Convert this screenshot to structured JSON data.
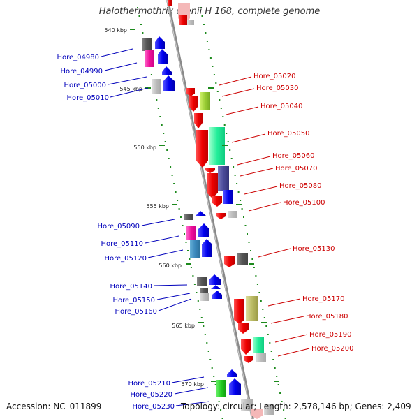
{
  "title": "Halothermothrix orenii H 168, complete genome",
  "accession": "Accession: NC_011899",
  "summary": "Topology: circular; Length: 2,578,146 bp; Genes: 2,409",
  "scale_labels": [
    "540 kbp",
    "545 kbp",
    "550 kbp",
    "555 kbp",
    "560 kbp",
    "565 kbp",
    "570 kbp"
  ],
  "left_genes": [
    "Hore_04980",
    "Hore_04990",
    "Hore_05000",
    "Hore_05010",
    "Hore_05090",
    "Hore_05110",
    "Hore_05120",
    "Hore_05140",
    "Hore_05150",
    "Hore_05160",
    "Hore_05210",
    "Hore_05220",
    "Hore_05230"
  ],
  "right_genes": [
    "Hore_05020",
    "Hore_05030",
    "Hore_05040",
    "Hore_05050",
    "Hore_05060",
    "Hore_05070",
    "Hore_05080",
    "Hore_05100",
    "Hore_05130",
    "Hore_05170",
    "Hore_05180",
    "Hore_05190",
    "Hore_05200"
  ],
  "colors": {
    "left_label": "#0000bb",
    "right_label": "#cc0000",
    "backbone": "#8a8a8a",
    "tick": "#1d8a1d"
  }
}
